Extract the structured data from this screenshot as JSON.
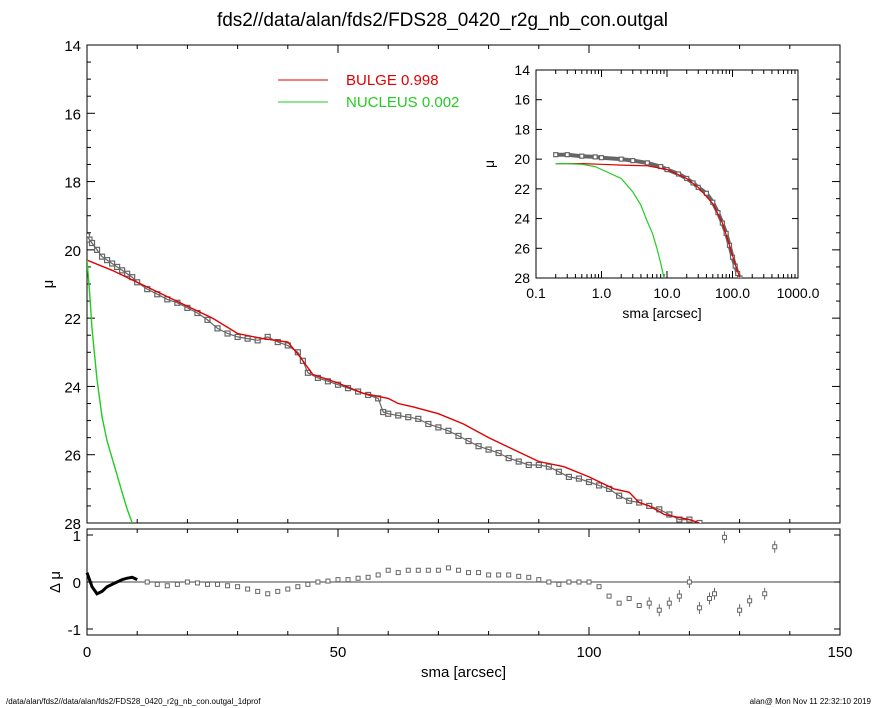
{
  "title": "fds2//data/alan/fds2/FDS28_0420_r2g_nb_con.outgal",
  "footer": {
    "left": "/data/alan/fds2//data/alan/fds2/FDS28_0420_r2g_nb_con.outgal_1dprof",
    "right": "alan@  Mon Nov 11 22:32:10 2019"
  },
  "colors": {
    "data": "#666666",
    "bulge": "#e00000",
    "nucleus": "#22cc22",
    "axis": "#000000"
  },
  "chart_data": [
    {
      "panel": "main",
      "type": "scatter",
      "xlabel": "sma [arcsec]",
      "ylabel": "μ",
      "xlim": [
        0,
        150
      ],
      "ylim": [
        28,
        14
      ],
      "y_inverted": true,
      "xticks": [
        0,
        50,
        100,
        150
      ],
      "yticks": [
        14,
        16,
        18,
        20,
        22,
        24,
        26,
        28
      ],
      "legend_position": "top-center",
      "legend": [
        {
          "name": "BULGE",
          "value": "0.998",
          "color": "#e00000"
        },
        {
          "name": "NUCLEUS",
          "value": "0.002",
          "color": "#22cc22"
        }
      ],
      "series": [
        {
          "name": "data",
          "x": [
            0,
            0.5,
            1,
            2,
            3,
            4,
            5,
            6,
            7,
            8,
            9,
            10,
            12,
            14,
            16,
            18,
            20,
            22,
            24,
            26,
            28,
            30,
            32,
            34,
            36,
            38,
            40,
            42,
            43,
            44,
            46,
            48,
            50,
            52,
            54,
            56,
            58,
            59,
            60,
            62,
            64,
            66,
            68,
            70,
            72,
            74,
            76,
            78,
            80,
            82,
            84,
            86,
            88,
            90,
            92,
            94,
            96,
            98,
            100,
            102,
            104,
            106,
            108,
            110,
            112,
            114,
            116,
            118,
            120,
            122
          ],
          "y": [
            19.6,
            19.7,
            19.8,
            20.0,
            20.2,
            20.3,
            20.4,
            20.5,
            20.6,
            20.7,
            20.8,
            20.95,
            21.15,
            21.3,
            21.45,
            21.55,
            21.7,
            21.85,
            22.05,
            22.3,
            22.45,
            22.55,
            22.6,
            22.65,
            22.55,
            22.7,
            22.8,
            23.0,
            23.25,
            23.6,
            23.75,
            23.85,
            23.95,
            24.05,
            24.15,
            24.25,
            24.35,
            24.75,
            24.8,
            24.85,
            24.9,
            24.95,
            25.1,
            25.2,
            25.3,
            25.45,
            25.6,
            25.75,
            25.85,
            25.95,
            26.1,
            26.2,
            26.3,
            26.3,
            26.35,
            26.5,
            26.65,
            26.7,
            26.8,
            26.9,
            27.0,
            27.2,
            27.35,
            27.4,
            27.5,
            27.6,
            27.75,
            27.9,
            27.9,
            28.0
          ]
        },
        {
          "name": "BULGE",
          "x": [
            0,
            5,
            10,
            15,
            20,
            25,
            30,
            35,
            40,
            42,
            45,
            50,
            55,
            60,
            62,
            65,
            70,
            75,
            80,
            85,
            90,
            95,
            100,
            105,
            108,
            110,
            112,
            115,
            120,
            122
          ],
          "y": [
            20.3,
            20.6,
            20.95,
            21.3,
            21.65,
            22.0,
            22.45,
            22.6,
            22.7,
            23.05,
            23.65,
            23.9,
            24.2,
            24.35,
            24.5,
            24.6,
            24.8,
            25.1,
            25.5,
            25.85,
            26.2,
            26.35,
            26.65,
            27.0,
            27.1,
            27.4,
            27.5,
            27.75,
            27.9,
            28.0
          ]
        },
        {
          "name": "NUCLEUS",
          "x": [
            0,
            0.5,
            1,
            2,
            3,
            4,
            5,
            6,
            7,
            8,
            9
          ],
          "y": [
            20.3,
            21.2,
            22.3,
            23.8,
            24.9,
            25.6,
            26.1,
            26.6,
            27.1,
            27.6,
            28.0
          ]
        }
      ]
    },
    {
      "panel": "residual",
      "type": "scatter",
      "xlabel": "sma [arcsec]",
      "ylabel": "Δ μ",
      "xlim": [
        0,
        150
      ],
      "ylim": [
        -1,
        1
      ],
      "xticks": [
        0,
        50,
        100,
        150
      ],
      "yticks": [
        -1,
        0,
        1
      ],
      "series": [
        {
          "name": "residual",
          "x": [
            0,
            0.5,
            1,
            2,
            3,
            4,
            5,
            6,
            7,
            8,
            9,
            10,
            12,
            14,
            16,
            18,
            20,
            22,
            24,
            26,
            28,
            30,
            32,
            34,
            36,
            38,
            40,
            42,
            44,
            46,
            48,
            50,
            52,
            54,
            56,
            58,
            60,
            62,
            64,
            66,
            68,
            70,
            72,
            74,
            76,
            78,
            80,
            82,
            84,
            86,
            88,
            90,
            92,
            94,
            96,
            98,
            100,
            102,
            104,
            106,
            108,
            110,
            112,
            114,
            116,
            118,
            120,
            122,
            124,
            125,
            127,
            130,
            132,
            135,
            137
          ],
          "y": [
            0.2,
            0.05,
            -0.1,
            -0.25,
            -0.2,
            -0.1,
            -0.05,
            0.0,
            0.05,
            0.08,
            0.1,
            0.05,
            0.0,
            -0.05,
            -0.08,
            -0.05,
            0.0,
            -0.02,
            -0.05,
            -0.05,
            -0.08,
            -0.1,
            -0.15,
            -0.2,
            -0.25,
            -0.2,
            -0.15,
            -0.1,
            -0.05,
            0.0,
            0.02,
            0.05,
            0.05,
            0.08,
            0.1,
            0.15,
            0.25,
            0.2,
            0.25,
            0.25,
            0.25,
            0.25,
            0.3,
            0.25,
            0.2,
            0.2,
            0.15,
            0.15,
            0.15,
            0.12,
            0.1,
            0.05,
            0.0,
            -0.05,
            0.0,
            0.0,
            0.0,
            -0.1,
            -0.3,
            -0.45,
            -0.35,
            -0.5,
            -0.45,
            -0.6,
            -0.45,
            -0.3,
            0.0,
            -0.55,
            -0.35,
            -0.25,
            0.95,
            -0.6,
            -0.4,
            -0.25,
            0.75
          ]
        }
      ]
    },
    {
      "panel": "inset",
      "type": "scatter",
      "xlabel": "sma [arcsec]",
      "ylabel": "μ",
      "xscale": "log",
      "xlim": [
        0.1,
        1000
      ],
      "ylim": [
        28,
        14
      ],
      "y_inverted": true,
      "xticks": [
        0.1,
        1,
        10,
        100,
        1000
      ],
      "xticklabels": [
        "0.1",
        "1.0",
        "10.0",
        "100.0",
        "1000.0"
      ],
      "yticks": [
        14,
        16,
        18,
        20,
        22,
        24,
        26,
        28
      ],
      "series": [
        {
          "name": "data",
          "x": [
            0.2,
            0.3,
            0.5,
            0.8,
            1,
            2,
            3,
            5,
            8,
            10,
            15,
            20,
            25,
            30,
            40,
            50,
            60,
            70,
            80,
            90,
            100,
            110,
            120,
            130
          ],
          "y": [
            19.7,
            19.7,
            19.8,
            19.85,
            19.9,
            20.0,
            20.1,
            20.25,
            20.5,
            20.7,
            21.0,
            21.3,
            21.6,
            21.9,
            22.3,
            22.9,
            23.6,
            24.3,
            25.0,
            25.8,
            26.6,
            27.2,
            27.7,
            28.0
          ]
        },
        {
          "name": "BULGE",
          "x": [
            0.2,
            0.5,
            1,
            2,
            5,
            10,
            20,
            30,
            50,
            70,
            90,
            110,
            130
          ],
          "y": [
            20.3,
            20.3,
            20.35,
            20.4,
            20.45,
            20.7,
            21.3,
            21.9,
            23.0,
            24.3,
            25.8,
            27.1,
            28.0
          ]
        },
        {
          "name": "NUCLEUS",
          "x": [
            0.2,
            0.3,
            0.5,
            0.8,
            1,
            2,
            3,
            4,
            5,
            6,
            7,
            8,
            9
          ],
          "y": [
            20.3,
            20.3,
            20.35,
            20.5,
            20.7,
            21.3,
            22.2,
            23.1,
            24.2,
            25.0,
            26.0,
            27.0,
            28.0
          ]
        }
      ]
    }
  ]
}
